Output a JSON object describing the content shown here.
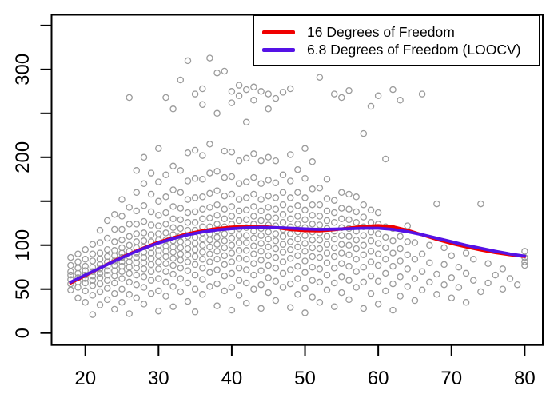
{
  "figure": {
    "background": "#ffffff",
    "axis_color": "#000000",
    "point_color": "#9b9b9b"
  },
  "chart_data": {
    "type": "scatter",
    "title": "",
    "xlabel": "",
    "ylabel": "",
    "grid": false,
    "x_range": [
      15.5,
      82.5
    ],
    "y_range": [
      -14,
      362
    ],
    "x_ticks": [
      20,
      30,
      40,
      50,
      60,
      70,
      80
    ],
    "x_tick_labels": [
      "20",
      "30",
      "40",
      "50",
      "60",
      "70",
      "80"
    ],
    "y_ticks": [
      0,
      50,
      100,
      150,
      200,
      250,
      300,
      350
    ],
    "y_tick_labels": [
      "0",
      "50",
      "100",
      "",
      "200",
      "",
      "300",
      ""
    ],
    "legend": {
      "position": "topright",
      "border": true,
      "background": "transparent"
    },
    "series": [
      {
        "name": "16 Degrees of Freedom",
        "color": "#f00000",
        "x": [
          18,
          20,
          22,
          24,
          26,
          28,
          30,
          32,
          34,
          36,
          38,
          40,
          42,
          44,
          46,
          48,
          50,
          52,
          54,
          56,
          58,
          60,
          62,
          64,
          66,
          68,
          70,
          72,
          74,
          76,
          78,
          80
        ],
        "y": [
          57,
          65.5,
          74,
          82.5,
          90,
          97,
          103.5,
          108.5,
          113,
          116.5,
          119,
          120.5,
          121.2,
          121.3,
          120,
          117.8,
          116.5,
          116.3,
          117.5,
          119.5,
          121.3,
          122.2,
          121,
          117,
          111.8,
          106.5,
          102,
          98,
          94.5,
          91.5,
          89,
          87
        ]
      },
      {
        "name": "6.8 Degrees of Freedom (LOOCV)",
        "color": "#5512e6",
        "x": [
          18,
          20,
          22,
          24,
          26,
          28,
          30,
          32,
          34,
          36,
          38,
          40,
          42,
          44,
          46,
          48,
          50,
          52,
          54,
          56,
          58,
          60,
          62,
          64,
          66,
          68,
          70,
          72,
          74,
          76,
          78,
          80
        ],
        "y": [
          58,
          66,
          74,
          82,
          89.5,
          96.5,
          102.5,
          107.5,
          111.8,
          115,
          117.3,
          118.8,
          119.8,
          120.2,
          120,
          119.3,
          118.5,
          118,
          118.2,
          118.8,
          119.3,
          119.3,
          118,
          115.3,
          112,
          108,
          104,
          100,
          96.5,
          93,
          90,
          87.5
        ]
      }
    ],
    "points_by_age": {
      "18": [
        49,
        56,
        61,
        66,
        70,
        77,
        86
      ],
      "19": [
        40,
        52,
        58,
        63,
        68,
        74,
        81,
        90
      ],
      "20": [
        35,
        48,
        57,
        62,
        66,
        71,
        76,
        84,
        95
      ],
      "21": [
        21,
        43,
        54,
        60,
        65,
        70,
        75,
        82,
        90,
        101
      ],
      "22": [
        32,
        47,
        56,
        63,
        68,
        73,
        78,
        84,
        91,
        103,
        117
      ],
      "23": [
        38,
        51,
        60,
        66,
        71,
        76,
        81,
        87,
        95,
        108,
        128
      ],
      "24": [
        27,
        45,
        57,
        65,
        71,
        77,
        82,
        88,
        94,
        104,
        118,
        135
      ],
      "25": [
        35,
        50,
        62,
        70,
        76,
        81,
        86,
        91,
        97,
        106,
        118,
        133,
        152
      ],
      "26": [
        22,
        44,
        58,
        68,
        75,
        81,
        87,
        93,
        100,
        110,
        124,
        143,
        268
      ],
      "27": [
        40,
        55,
        66,
        74,
        80,
        86,
        91,
        97,
        104,
        113,
        124,
        139,
        160,
        185
      ],
      "28": [
        33,
        52,
        64,
        73,
        80,
        86,
        92,
        98,
        105,
        114,
        127,
        145,
        170,
        200
      ],
      "29": [
        45,
        60,
        70,
        78,
        85,
        91,
        97,
        104,
        112,
        123,
        138,
        158,
        182
      ],
      "30": [
        25,
        48,
        62,
        73,
        81,
        88,
        94,
        100,
        106,
        113,
        122,
        134,
        150,
        172,
        210
      ],
      "31": [
        42,
        58,
        70,
        79,
        87,
        93,
        99,
        106,
        114,
        124,
        137,
        155,
        180,
        268
      ],
      "32": [
        30,
        53,
        67,
        77,
        85,
        92,
        98,
        105,
        112,
        120,
        130,
        144,
        163,
        190,
        255
      ],
      "33": [
        47,
        62,
        74,
        83,
        90,
        97,
        104,
        111,
        119,
        129,
        142,
        160,
        185,
        288
      ],
      "34": [
        36,
        57,
        71,
        81,
        89,
        96,
        103,
        110,
        117,
        126,
        137,
        152,
        173,
        205,
        310
      ],
      "35": [
        24,
        50,
        66,
        78,
        87,
        95,
        102,
        109,
        117,
        126,
        138,
        154,
        176,
        208,
        272
      ],
      "36": [
        44,
        61,
        74,
        84,
        92,
        100,
        107,
        114,
        121,
        130,
        141,
        155,
        175,
        202,
        260,
        278
      ],
      "37": [
        53,
        69,
        81,
        90,
        98,
        106,
        113,
        121,
        131,
        143,
        159,
        182,
        215,
        313
      ],
      "38": [
        31,
        56,
        72,
        84,
        93,
        101,
        109,
        116,
        124,
        134,
        146,
        162,
        184,
        250,
        296
      ],
      "39": [
        48,
        65,
        78,
        88,
        97,
        105,
        113,
        121,
        130,
        141,
        156,
        177,
        207,
        298
      ],
      "40": [
        26,
        52,
        68,
        81,
        91,
        100,
        108,
        116,
        124,
        133,
        144,
        158,
        178,
        206,
        262,
        275
      ],
      "41": [
        43,
        60,
        74,
        85,
        94,
        103,
        111,
        119,
        128,
        139,
        152,
        170,
        196,
        270,
        282
      ],
      "42": [
        34,
        57,
        72,
        84,
        94,
        103,
        111,
        120,
        129,
        140,
        154,
        172,
        199,
        240,
        277
      ],
      "43": [
        50,
        66,
        79,
        90,
        99,
        108,
        116,
        124,
        133,
        144,
        158,
        177,
        204,
        265,
        280
      ],
      "44": [
        28,
        55,
        71,
        83,
        93,
        102,
        111,
        119,
        128,
        139,
        152,
        170,
        196,
        275
      ],
      "45": [
        46,
        63,
        77,
        88,
        98,
        107,
        115,
        123,
        132,
        143,
        156,
        174,
        200,
        255,
        272
      ],
      "46": [
        37,
        59,
        74,
        86,
        96,
        105,
        113,
        122,
        131,
        141,
        154,
        171,
        196,
        267
      ],
      "47": [
        52,
        68,
        81,
        92,
        101,
        110,
        118,
        126,
        135,
        146,
        160,
        180,
        274
      ],
      "48": [
        29,
        56,
        72,
        85,
        95,
        104,
        113,
        121,
        130,
        141,
        154,
        173,
        203,
        278
      ],
      "49": [
        44,
        62,
        76,
        88,
        98,
        107,
        115,
        124,
        133,
        145,
        160,
        186
      ],
      "50": [
        23,
        51,
        69,
        82,
        93,
        102,
        111,
        120,
        129,
        140,
        154,
        176,
        210
      ],
      "51": [
        41,
        60,
        75,
        87,
        97,
        106,
        115,
        124,
        134,
        146,
        164,
        195
      ],
      "52": [
        35,
        58,
        73,
        86,
        96,
        106,
        114,
        123,
        133,
        146,
        165,
        291
      ],
      "53": [
        49,
        66,
        80,
        91,
        101,
        110,
        119,
        128,
        139,
        153,
        175
      ],
      "54": [
        30,
        57,
        74,
        87,
        97,
        107,
        116,
        126,
        137,
        151,
        272
      ],
      "55": [
        46,
        64,
        79,
        91,
        101,
        111,
        120,
        130,
        142,
        160,
        268
      ],
      "56": [
        38,
        60,
        76,
        89,
        100,
        110,
        119,
        129,
        141,
        158,
        276
      ],
      "57": [
        52,
        70,
        84,
        96,
        106,
        116,
        126,
        138,
        155
      ],
      "58": [
        28,
        58,
        75,
        89,
        100,
        111,
        121,
        132,
        146,
        227
      ],
      "59": [
        45,
        65,
        81,
        93,
        105,
        115,
        126,
        140,
        258
      ],
      "60": [
        33,
        59,
        77,
        90,
        102,
        113,
        124,
        137,
        270
      ],
      "61": [
        48,
        68,
        84,
        97,
        109,
        121,
        198
      ],
      "62": [
        26,
        56,
        76,
        91,
        105,
        119,
        277
      ],
      "63": [
        42,
        64,
        82,
        96,
        110,
        265
      ],
      "64": [
        53,
        73,
        89,
        104,
        122
      ],
      "65": [
        37,
        62,
        84,
        103
      ],
      "66": [
        49,
        70,
        90,
        272
      ],
      "67": [
        58,
        80,
        100
      ],
      "68": [
        44,
        67,
        147
      ],
      "69": [
        55,
        78,
        97
      ],
      "70": [
        40,
        63,
        88
      ],
      "71": [
        52,
        75
      ],
      "72": [
        35,
        68,
        91
      ],
      "73": [
        60,
        84
      ],
      "74": [
        47,
        147
      ],
      "75": [
        57,
        79
      ],
      "76": [
        66
      ],
      "77": [
        50,
        73
      ],
      "78": [
        62
      ],
      "79": [
        55
      ],
      "80": [
        77,
        81,
        86,
        93
      ]
    }
  }
}
